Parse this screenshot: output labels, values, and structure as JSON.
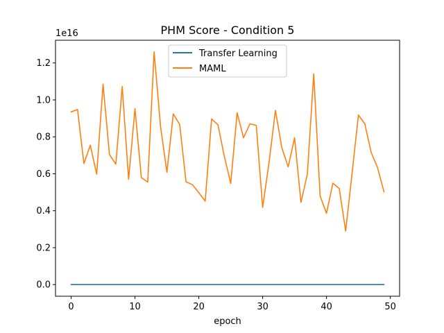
{
  "chart_data": {
    "type": "line",
    "title": "PHM Score - Condition 5",
    "xlabel": "epoch",
    "ylabel": "",
    "y_offset_label": "1e16",
    "y_scale_exponent": 16,
    "xlim": [
      -2.45,
      51.45
    ],
    "ylim": [
      -0.063,
      1.323
    ],
    "x_ticks": [
      0,
      10,
      20,
      30,
      40,
      50
    ],
    "y_ticks": [
      0.0,
      0.2,
      0.4,
      0.6,
      0.8,
      1.0,
      1.2
    ],
    "y_tick_labels": [
      "0.0",
      "0.2",
      "0.4",
      "0.6",
      "0.8",
      "1.0",
      "1.2"
    ],
    "grid": false,
    "legend_placement": "upper-center",
    "x": [
      0,
      1,
      2,
      3,
      4,
      5,
      6,
      7,
      8,
      9,
      10,
      11,
      12,
      13,
      14,
      15,
      16,
      17,
      18,
      19,
      20,
      21,
      22,
      23,
      24,
      25,
      26,
      27,
      28,
      29,
      30,
      31,
      32,
      33,
      34,
      35,
      36,
      37,
      38,
      39,
      40,
      41,
      42,
      43,
      44,
      45,
      46,
      47,
      48,
      49
    ],
    "series": [
      {
        "name": "Transfer Learning",
        "color": "#1f77b4",
        "values": [
          0,
          0,
          0,
          0,
          0,
          0,
          0,
          0,
          0,
          0,
          0,
          0,
          0,
          0,
          0,
          0,
          0,
          0,
          0,
          0,
          0,
          0,
          0,
          0,
          0,
          0,
          0,
          0,
          0,
          0,
          0,
          0,
          0,
          0,
          0,
          0,
          0,
          0,
          0,
          0,
          0,
          0,
          0,
          0,
          0,
          0,
          0,
          0,
          0,
          0
        ]
      },
      {
        "name": "MAML",
        "color": "#ff7f0e",
        "values": [
          0.935,
          0.948,
          0.655,
          0.755,
          0.598,
          1.085,
          0.705,
          0.652,
          1.072,
          0.57,
          0.953,
          0.579,
          0.555,
          1.26,
          0.857,
          0.608,
          0.924,
          0.867,
          0.556,
          0.541,
          0.497,
          0.452,
          0.897,
          0.865,
          0.693,
          0.548,
          0.93,
          0.795,
          0.87,
          0.862,
          0.418,
          0.661,
          0.943,
          0.741,
          0.637,
          0.795,
          0.445,
          0.598,
          1.141,
          0.48,
          0.386,
          0.549,
          0.52,
          0.29,
          0.601,
          0.918,
          0.87,
          0.715,
          0.633,
          0.502
        ]
      }
    ]
  }
}
